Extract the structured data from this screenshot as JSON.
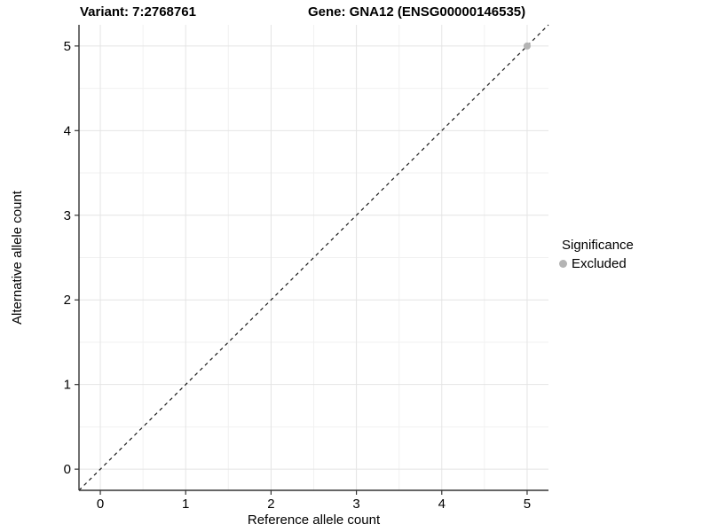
{
  "header": {
    "variant_title": "Variant: 7:2768761",
    "gene_title": "Gene: GNA12 (ENSG00000146535)"
  },
  "chart_data": {
    "type": "scatter",
    "title": "Variant: 7:2768761 | Gene: GNA12 (ENSG00000146535)",
    "xlabel": "Reference allele count",
    "ylabel": "Alternative allele count",
    "xlim": [
      -0.25,
      5.25
    ],
    "ylim": [
      -0.25,
      5.25
    ],
    "x_ticks": [
      0,
      1,
      2,
      3,
      4,
      5
    ],
    "y_ticks": [
      0,
      1,
      2,
      3,
      4,
      5
    ],
    "grid": true,
    "identity_line": {
      "style": "dashed",
      "from": [
        -0.25,
        -0.25
      ],
      "to": [
        5.25,
        5.25
      ],
      "color": "#1a1a1a"
    },
    "series": [
      {
        "name": "Excluded",
        "color": "#b4b4b4",
        "points": [
          [
            5,
            5
          ]
        ]
      }
    ],
    "legend": {
      "title": "Significance",
      "position": "right",
      "items": [
        {
          "label": "Excluded",
          "color": "#b4b4b4"
        }
      ]
    },
    "colors": {
      "grid_major": "#e4e4e4",
      "grid_minor": "#f1f1f1",
      "axis_line": "#333333",
      "tick": "#333333",
      "point": "#b4b4b4"
    }
  }
}
